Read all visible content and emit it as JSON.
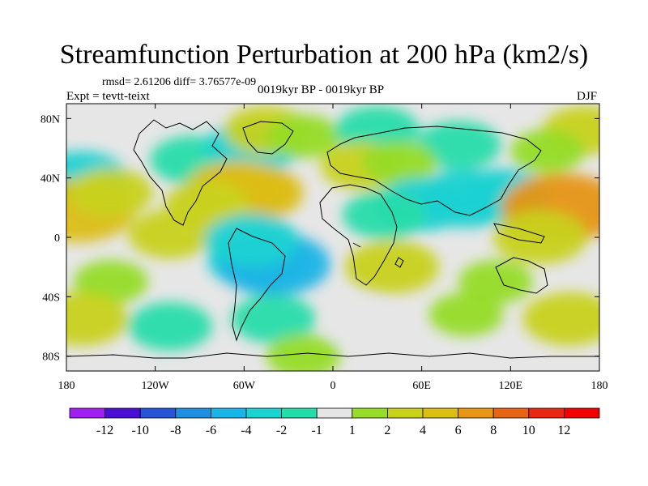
{
  "chart_data": {
    "type": "filled-contour-map",
    "title": "Streamfunction Perturbation at 200 hPa (km2/s)",
    "subtitle_left_line1": "rmsd= 2.61206 diff= 3.76577e-09",
    "subtitle_left_line2": "Expt = tevtt-teixt",
    "subtitle_center": "0019kyr BP - 0019kyr BP",
    "subtitle_right": "DJF",
    "x_ticks": [
      "180",
      "120W",
      "60W",
      "0",
      "60E",
      "120E",
      "180"
    ],
    "y_ticks": [
      "80N",
      "40N",
      "0",
      "40S",
      "80S"
    ],
    "xlim": [
      -180,
      180
    ],
    "ylim": [
      -90,
      90
    ],
    "colorbar": {
      "labels": [
        "-12",
        "-10",
        "-8",
        "-6",
        "-4",
        "-2",
        "-1",
        "1",
        "2",
        "4",
        "6",
        "8",
        "10",
        "12"
      ],
      "colors": [
        "#a020f0",
        "#4b0fd2",
        "#2855d7",
        "#1f8fe0",
        "#1ab4e6",
        "#1ed2d2",
        "#28dcaa",
        "#e6e6e6",
        "#96dc28",
        "#c8d21e",
        "#dcbe14",
        "#e69614",
        "#e66414",
        "#e62814",
        "#f00000"
      ]
    },
    "fields": [
      {
        "lon": -95,
        "lat": 52,
        "value": -2
      },
      {
        "lon": -55,
        "lat": 60,
        "value": -3
      },
      {
        "lon": -45,
        "lat": 72,
        "value": 2
      },
      {
        "lon": -20,
        "lat": 68,
        "value": 1
      },
      {
        "lon": 30,
        "lat": 72,
        "value": -2
      },
      {
        "lon": 85,
        "lat": 62,
        "value": -2
      },
      {
        "lon": 170,
        "lat": 72,
        "value": 2
      },
      {
        "lon": 145,
        "lat": 58,
        "value": 1
      },
      {
        "lon": -170,
        "lat": 40,
        "value": -3
      },
      {
        "lon": -172,
        "lat": 18,
        "value": 5
      },
      {
        "lon": -150,
        "lat": 30,
        "value": 2
      },
      {
        "lon": -55,
        "lat": 30,
        "value": 4
      },
      {
        "lon": -65,
        "lat": 32,
        "value": 4
      },
      {
        "lon": -85,
        "lat": 22,
        "value": 2
      },
      {
        "lon": 20,
        "lat": 48,
        "value": 2
      },
      {
        "lon": 45,
        "lat": 50,
        "value": 1
      },
      {
        "lon": 60,
        "lat": 22,
        "value": -3
      },
      {
        "lon": 90,
        "lat": 26,
        "value": -4
      },
      {
        "lon": 115,
        "lat": 28,
        "value": -3
      },
      {
        "lon": 35,
        "lat": 15,
        "value": -2
      },
      {
        "lon": 155,
        "lat": 20,
        "value": 6
      },
      {
        "lon": 140,
        "lat": 0,
        "value": 3
      },
      {
        "lon": -110,
        "lat": 2,
        "value": 2
      },
      {
        "lon": -50,
        "lat": -15,
        "value": -4
      },
      {
        "lon": -40,
        "lat": -18,
        "value": -5
      },
      {
        "lon": -55,
        "lat": -2,
        "value": -3
      },
      {
        "lon": 40,
        "lat": -20,
        "value": 3
      },
      {
        "lon": 110,
        "lat": -30,
        "value": 1
      },
      {
        "lon": -150,
        "lat": -30,
        "value": 1
      },
      {
        "lon": -170,
        "lat": -55,
        "value": 3
      },
      {
        "lon": -110,
        "lat": -60,
        "value": -2
      },
      {
        "lon": -40,
        "lat": -55,
        "value": -2
      },
      {
        "lon": 20,
        "lat": -58,
        "value": -1
      },
      {
        "lon": 90,
        "lat": -52,
        "value": 1
      },
      {
        "lon": 160,
        "lat": -55,
        "value": 3
      },
      {
        "lon": -20,
        "lat": -80,
        "value": 1
      }
    ]
  }
}
